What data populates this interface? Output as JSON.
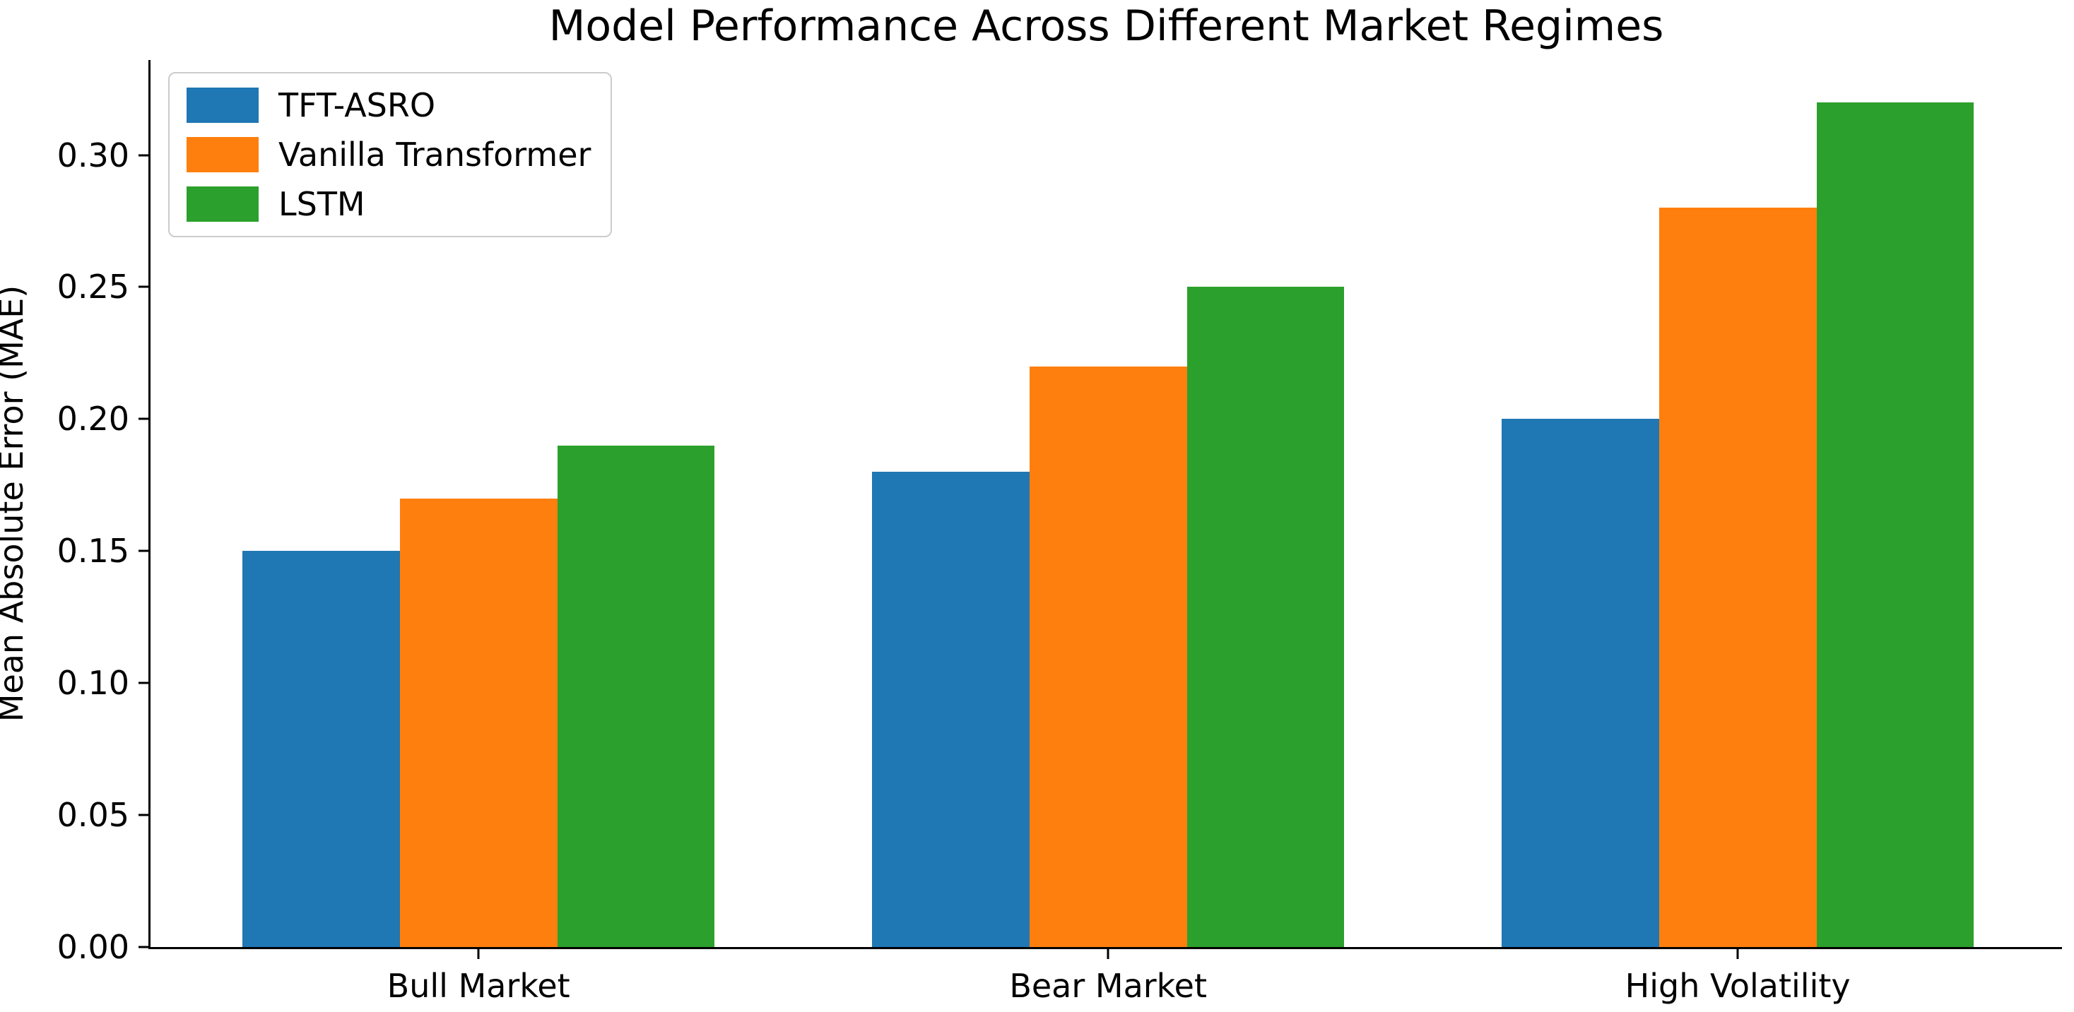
{
  "chart_data": {
    "type": "bar",
    "title": "Model Performance Across Different Market Regimes",
    "xlabel": "",
    "ylabel": "Mean Absolute Error (MAE)",
    "categories": [
      "Bull Market",
      "Bear Market",
      "High Volatility"
    ],
    "series": [
      {
        "name": "TFT-ASRO",
        "color": "#1f77b4",
        "values": [
          0.15,
          0.18,
          0.2
        ]
      },
      {
        "name": "Vanilla Transformer",
        "color": "#ff7f0e",
        "values": [
          0.17,
          0.22,
          0.28
        ]
      },
      {
        "name": "LSTM",
        "color": "#2ca02c",
        "values": [
          0.19,
          0.25,
          0.32
        ]
      }
    ],
    "ylim": [
      0,
      0.336
    ],
    "yticks": [
      "0.00",
      "0.05",
      "0.10",
      "0.15",
      "0.20",
      "0.25",
      "0.30"
    ],
    "bar_width_fraction": 0.25,
    "grid": false,
    "legend_position": "upper left",
    "axis_color": "#000000",
    "background_color": "#ffffff"
  }
}
